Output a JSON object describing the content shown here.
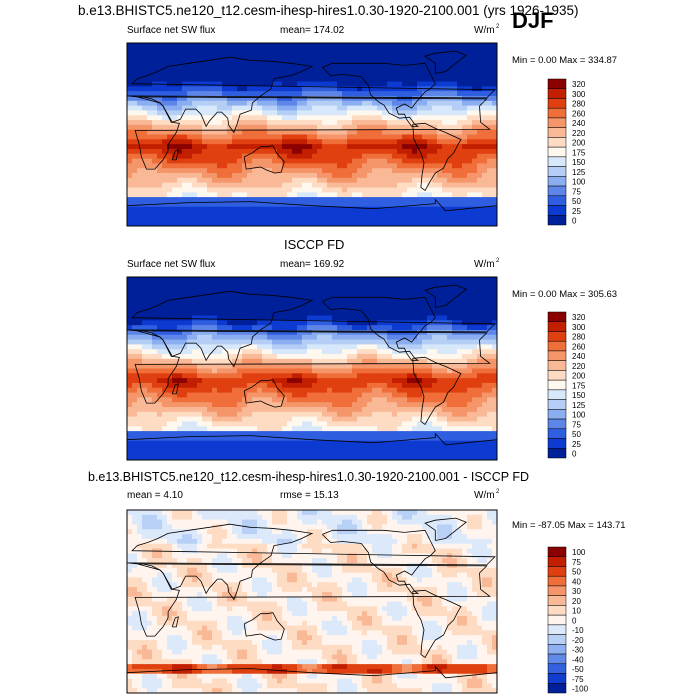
{
  "page_title": "b.e13.BHISTC5.ne120_t12.cesm-ihesp-hires1.0.30-1920-2100.001 (yrs 1926-1935)",
  "season": "DJF",
  "middle_title": "ISCCP FD",
  "diff_title": "b.e13.BHISTC5.ne120_t12.cesm-ihesp-hires1.0.30-1920-2100.001 - ISCCP FD",
  "chart_data": [
    {
      "type": "heatmap",
      "title": "Surface net SW flux",
      "mean_text": "mean= 174.02",
      "units_text": "W/m",
      "units_sup": "2",
      "minmax_text": "Min =   0.00 Max = 334.87",
      "colorbar": {
        "levels": [
          "320",
          "300",
          "280",
          "260",
          "240",
          "220",
          "200",
          "175",
          "150",
          "125",
          "100",
          "75",
          "50",
          "25",
          "0"
        ],
        "colors": [
          "#8b0000",
          "#c21f00",
          "#e04010",
          "#ef6e39",
          "#f5956a",
          "#fab996",
          "#fedcc4",
          "#fff8ee",
          "#d8e8fb",
          "#b4cef5",
          "#8aaeef",
          "#5d86e8",
          "#2f5ee0",
          "#0d3ad0",
          "#00209a"
        ]
      }
    },
    {
      "type": "heatmap",
      "title": "Surface net SW flux",
      "mean_text": "mean= 169.92",
      "units_text": "W/m",
      "units_sup": "2",
      "minmax_text": "Min =   0.00 Max = 305.63",
      "colorbar": {
        "levels": [
          "320",
          "300",
          "280",
          "260",
          "240",
          "220",
          "200",
          "175",
          "150",
          "125",
          "100",
          "75",
          "50",
          "25",
          "0"
        ],
        "colors": [
          "#8b0000",
          "#c21f00",
          "#e04010",
          "#ef6e39",
          "#f5956a",
          "#fab996",
          "#fedcc4",
          "#fff8ee",
          "#d8e8fb",
          "#b4cef5",
          "#8aaeef",
          "#5d86e8",
          "#2f5ee0",
          "#0d3ad0",
          "#00209a"
        ]
      }
    },
    {
      "type": "heatmap",
      "title": "",
      "mean_text": "mean =   4.10",
      "rmse_text": "rmse =   15.13",
      "units_text": "W/m",
      "units_sup": "2",
      "minmax_text": "Min = -87.05 Max = 143.71",
      "colorbar": {
        "levels": [
          "100",
          "75",
          "50",
          "40",
          "30",
          "20",
          "10",
          "0",
          "-10",
          "-20",
          "-30",
          "-40",
          "-50",
          "-75",
          "-100"
        ],
        "colors": [
          "#8b0000",
          "#c21f00",
          "#e04010",
          "#ef6e39",
          "#f5956a",
          "#fab996",
          "#fedcc4",
          "#fff5ee",
          "#dbe9fb",
          "#b8d0f6",
          "#8fb0f0",
          "#6189e8",
          "#3461e0",
          "#103cd0",
          "#00209a"
        ]
      }
    }
  ]
}
